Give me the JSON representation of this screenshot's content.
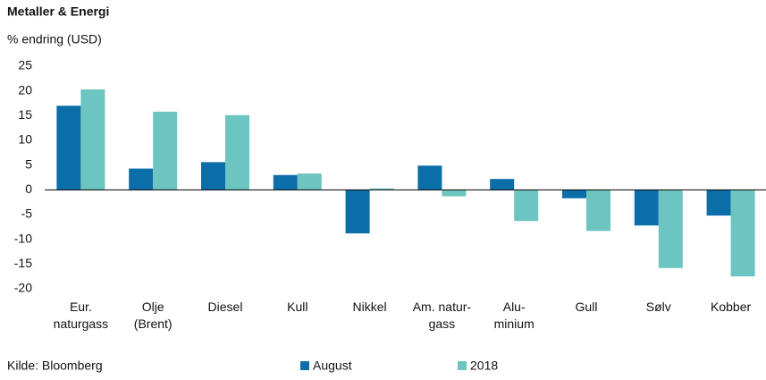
{
  "chart_data": {
    "type": "bar",
    "title": "Metaller & Energi",
    "subtitle": "% endring (USD)",
    "source": "Kilde: Bloomberg",
    "categories": [
      "Eur.\nnaturgass",
      "Olje\n(Brent)",
      "Diesel",
      "Kull",
      "Nikkel",
      "Am. natur-\ngass",
      "Alu-\nminium",
      "Gull",
      "Sølv",
      "Kobber"
    ],
    "series": [
      {
        "name": "August",
        "color": "#0b6ea8",
        "values": [
          17,
          4.3,
          5.6,
          3.0,
          -8.8,
          4.9,
          2.2,
          -1.7,
          -7.2,
          -5.2
        ]
      },
      {
        "name": "2018",
        "color": "#6cc5c0",
        "values": [
          20.3,
          15.8,
          15.1,
          3.3,
          0.3,
          -1.3,
          -6.3,
          -8.3,
          -15.8,
          -17.5
        ]
      }
    ],
    "ylim": [
      -20,
      25
    ],
    "yticks": [
      -20,
      -15,
      -10,
      -5,
      0,
      5,
      10,
      15,
      20,
      25
    ],
    "grid": false
  }
}
